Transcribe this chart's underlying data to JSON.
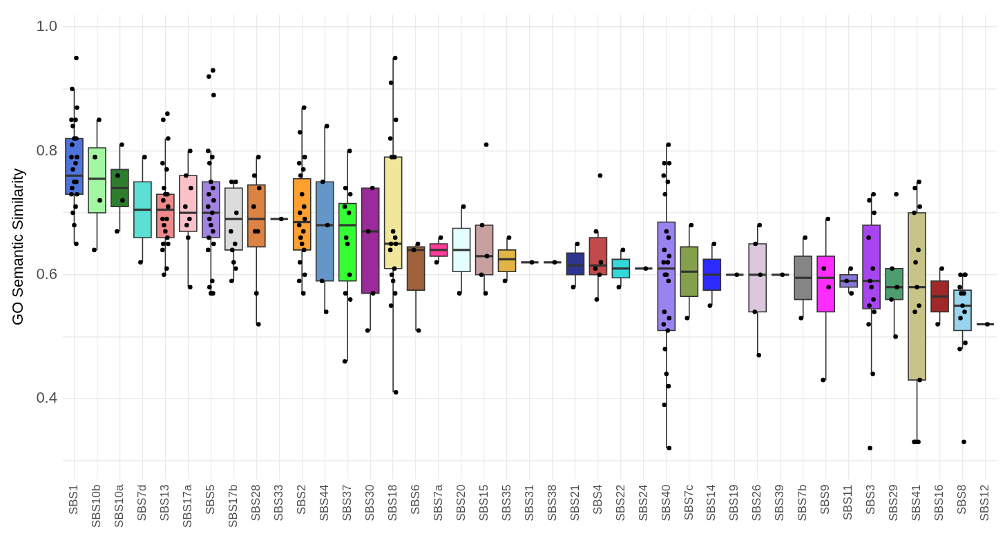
{
  "chart_data": {
    "type": "box",
    "ylabel": "GO Semantic Similarity",
    "categories": [
      "SBS1",
      "SBS10b",
      "SBS10a",
      "SBS7d",
      "SBS13",
      "SBS17a",
      "SBS5",
      "SBS17b",
      "SBS28",
      "SBS33",
      "SBS2",
      "SBS44",
      "SBS37",
      "SBS30",
      "SBS18",
      "SBS6",
      "SBS7a",
      "SBS20",
      "SBS15",
      "SBS35",
      "SBS31",
      "SBS38",
      "SBS21",
      "SBS4",
      "SBS22",
      "SBS24",
      "SBS40",
      "SBS7c",
      "SBS14",
      "SBS19",
      "SBS26",
      "SBS39",
      "SBS7b",
      "SBS9",
      "SBS11",
      "SBS3",
      "SBS29",
      "SBS41",
      "SBS16",
      "SBS8",
      "SBS12"
    ],
    "ylim": [
      0.27,
      1.02
    ],
    "yticks": [
      {
        "value": 0.3,
        "label": null
      },
      0.4,
      {
        "value": 0.5,
        "label": null
      },
      0.6,
      {
        "value": 0.7,
        "label": null
      },
      0.8,
      {
        "value": 0.9,
        "label": null
      },
      {
        "value": 1,
        "label": "1.0"
      }
    ],
    "grid": true,
    "series": [
      {
        "type": "box",
        "colors": [
          "#4f73dd",
          "#a3f7a3",
          "#2e7d2e",
          "#5ce0d5",
          "#ef8a8a",
          "#fcc0c8",
          "#a183e0",
          "#dcdcdc",
          "#dc8242",
          "#333333",
          "#ffa030",
          "#6496c8",
          "#33ff33",
          "#9b2a9b",
          "#f0e69c",
          "#a0623a",
          "#ff3c9b",
          "#e3ffff",
          "#c8a0a0",
          "#e2b445",
          "#333333",
          "#333333",
          "#2e3591",
          "#c24a4a",
          "#33d8d8",
          "#333333",
          "#9883f0",
          "#85a04c",
          "#2b2bff",
          "#333333",
          "#dcc8dc",
          "#333333",
          "#858585",
          "#ff2cff",
          "#8877d8",
          "#a845f0",
          "#4c9e6e",
          "#c8c488",
          "#a02828",
          "#98d4ee",
          "#333333"
        ],
        "boxes": [
          {
            "low": 0.65,
            "q1": 0.73,
            "median": 0.76,
            "q3": 0.82,
            "high": 0.9
          },
          {
            "low": 0.64,
            "q1": 0.7,
            "median": 0.755,
            "q3": 0.805,
            "high": 0.85
          },
          {
            "low": 0.67,
            "q1": 0.71,
            "median": 0.74,
            "q3": 0.77,
            "high": 0.81
          },
          {
            "low": 0.62,
            "q1": 0.66,
            "median": 0.705,
            "q3": 0.75,
            "high": 0.79
          },
          {
            "low": 0.6,
            "q1": 0.66,
            "median": 0.705,
            "q3": 0.73,
            "high": 0.82
          },
          {
            "low": 0.58,
            "q1": 0.67,
            "median": 0.7,
            "q3": 0.76,
            "high": 0.8
          },
          {
            "low": 0.57,
            "q1": 0.66,
            "median": 0.7,
            "q3": 0.75,
            "high": 0.8
          },
          {
            "low": 0.59,
            "q1": 0.64,
            "median": 0.69,
            "q3": 0.74,
            "high": 0.75
          },
          {
            "low": 0.52,
            "q1": 0.645,
            "median": 0.69,
            "q3": 0.745,
            "high": 0.79
          },
          {
            "low": 0.69,
            "q1": 0.69,
            "median": 0.69,
            "q3": 0.69,
            "high": 0.69
          },
          {
            "low": 0.57,
            "q1": 0.64,
            "median": 0.685,
            "q3": 0.755,
            "high": 0.87
          },
          {
            "low": 0.54,
            "q1": 0.59,
            "median": 0.68,
            "q3": 0.75,
            "high": 0.84
          },
          {
            "low": 0.46,
            "q1": 0.59,
            "median": 0.68,
            "q3": 0.715,
            "high": 0.8
          },
          {
            "low": 0.51,
            "q1": 0.57,
            "median": 0.67,
            "q3": 0.74,
            "high": 0.74
          },
          {
            "low": 0.41,
            "q1": 0.61,
            "median": 0.65,
            "q3": 0.79,
            "high": 0.95
          },
          {
            "low": 0.51,
            "q1": 0.575,
            "median": 0.64,
            "q3": 0.645,
            "high": 0.65
          },
          {
            "low": 0.62,
            "q1": 0.63,
            "median": 0.64,
            "q3": 0.65,
            "high": 0.66
          },
          {
            "low": 0.57,
            "q1": 0.605,
            "median": 0.64,
            "q3": 0.675,
            "high": 0.71
          },
          {
            "low": 0.57,
            "q1": 0.6,
            "median": 0.63,
            "q3": 0.68,
            "high": 0.68
          },
          {
            "low": 0.59,
            "q1": 0.605,
            "median": 0.625,
            "q3": 0.64,
            "high": 0.66
          },
          {
            "low": 0.62,
            "q1": 0.62,
            "median": 0.62,
            "q3": 0.62,
            "high": 0.62
          },
          {
            "low": 0.62,
            "q1": 0.62,
            "median": 0.62,
            "q3": 0.62,
            "high": 0.62
          },
          {
            "low": 0.58,
            "q1": 0.6,
            "median": 0.615,
            "q3": 0.635,
            "high": 0.65
          },
          {
            "low": 0.56,
            "q1": 0.6,
            "median": 0.615,
            "q3": 0.66,
            "high": 0.67
          },
          {
            "low": 0.58,
            "q1": 0.595,
            "median": 0.61,
            "q3": 0.625,
            "high": 0.64
          },
          {
            "low": 0.61,
            "q1": 0.61,
            "median": 0.61,
            "q3": 0.61,
            "high": 0.61
          },
          {
            "low": 0.32,
            "q1": 0.51,
            "median": 0.61,
            "q3": 0.685,
            "high": 0.81
          },
          {
            "low": 0.53,
            "q1": 0.565,
            "median": 0.605,
            "q3": 0.645,
            "high": 0.68
          },
          {
            "low": 0.55,
            "q1": 0.575,
            "median": 0.6,
            "q3": 0.625,
            "high": 0.65
          },
          {
            "low": 0.6,
            "q1": 0.6,
            "median": 0.6,
            "q3": 0.6,
            "high": 0.6
          },
          {
            "low": 0.47,
            "q1": 0.54,
            "median": 0.6,
            "q3": 0.65,
            "high": 0.68
          },
          {
            "low": 0.6,
            "q1": 0.6,
            "median": 0.6,
            "q3": 0.6,
            "high": 0.6
          },
          {
            "low": 0.53,
            "q1": 0.56,
            "median": 0.595,
            "q3": 0.63,
            "high": 0.66
          },
          {
            "low": 0.43,
            "q1": 0.54,
            "median": 0.595,
            "q3": 0.63,
            "high": 0.69
          },
          {
            "low": 0.57,
            "q1": 0.58,
            "median": 0.59,
            "q3": 0.6,
            "high": 0.61
          },
          {
            "low": 0.44,
            "q1": 0.545,
            "median": 0.59,
            "q3": 0.68,
            "high": 0.73
          },
          {
            "low": 0.5,
            "q1": 0.56,
            "median": 0.58,
            "q3": 0.61,
            "high": 0.61
          },
          {
            "low": 0.33,
            "q1": 0.43,
            "median": 0.58,
            "q3": 0.7,
            "high": 0.75
          },
          {
            "low": 0.52,
            "q1": 0.54,
            "median": 0.565,
            "q3": 0.59,
            "high": 0.61
          },
          {
            "low": 0.48,
            "q1": 0.51,
            "median": 0.55,
            "q3": 0.575,
            "high": 0.6
          },
          {
            "low": 0.52,
            "q1": 0.52,
            "median": 0.52,
            "q3": 0.52,
            "high": 0.52
          }
        ]
      },
      {
        "type": "scatter",
        "color": "#000000",
        "x": [
          "SBS1",
          "SBS1",
          "SBS1",
          "SBS1",
          "SBS1",
          "SBS1",
          "SBS1",
          "SBS1",
          "SBS1",
          "SBS1",
          "SBS1",
          "SBS1",
          "SBS1",
          "SBS1",
          "SBS1",
          "SBS1",
          "SBS1",
          "SBS1",
          "SBS1",
          "SBS1",
          "SBS1",
          "SBS1",
          "SBS10b",
          "SBS10b",
          "SBS10b",
          "SBS10b",
          "SBS10a",
          "SBS10a",
          "SBS10a",
          "SBS10a",
          "SBS7d",
          "SBS7d",
          "SBS13",
          "SBS13",
          "SBS13",
          "SBS13",
          "SBS13",
          "SBS13",
          "SBS13",
          "SBS13",
          "SBS13",
          "SBS13",
          "SBS13",
          "SBS13",
          "SBS13",
          "SBS13",
          "SBS13",
          "SBS13",
          "SBS13",
          "SBS13",
          "SBS13",
          "SBS13",
          "SBS17a",
          "SBS17a",
          "SBS17a",
          "SBS17a",
          "SBS17a",
          "SBS17a",
          "SBS17a",
          "SBS17a",
          "SBS5",
          "SBS5",
          "SBS5",
          "SBS5",
          "SBS5",
          "SBS5",
          "SBS5",
          "SBS5",
          "SBS5",
          "SBS5",
          "SBS5",
          "SBS5",
          "SBS5",
          "SBS5",
          "SBS5",
          "SBS5",
          "SBS5",
          "SBS5",
          "SBS5",
          "SBS5",
          "SBS5",
          "SBS5",
          "SBS17b",
          "SBS17b",
          "SBS17b",
          "SBS17b",
          "SBS17b",
          "SBS17b",
          "SBS17b",
          "SBS17b",
          "SBS17b",
          "SBS28",
          "SBS28",
          "SBS28",
          "SBS28",
          "SBS28",
          "SBS28",
          "SBS28",
          "SBS28",
          "SBS33",
          "SBS2",
          "SBS2",
          "SBS2",
          "SBS2",
          "SBS2",
          "SBS2",
          "SBS2",
          "SBS2",
          "SBS2",
          "SBS2",
          "SBS2",
          "SBS2",
          "SBS2",
          "SBS2",
          "SBS2",
          "SBS2",
          "SBS2",
          "SBS2",
          "SBS2",
          "SBS44",
          "SBS44",
          "SBS44",
          "SBS44",
          "SBS44",
          "SBS37",
          "SBS37",
          "SBS37",
          "SBS37",
          "SBS37",
          "SBS37",
          "SBS37",
          "SBS37",
          "SBS37",
          "SBS37",
          "SBS37",
          "SBS30",
          "SBS30",
          "SBS30",
          "SBS30",
          "SBS18",
          "SBS18",
          "SBS18",
          "SBS18",
          "SBS18",
          "SBS18",
          "SBS18",
          "SBS18",
          "SBS18",
          "SBS18",
          "SBS18",
          "SBS18",
          "SBS18",
          "SBS18",
          "SBS18",
          "SBS18",
          "SBS18",
          "SBS6",
          "SBS6",
          "SBS6",
          "SBS7a",
          "SBS7a",
          "SBS20",
          "SBS20",
          "SBS15",
          "SBS15",
          "SBS15",
          "SBS15",
          "SBS15",
          "SBS35",
          "SBS35",
          "SBS31",
          "SBS38",
          "SBS21",
          "SBS21",
          "SBS4",
          "SBS4",
          "SBS4",
          "SBS4",
          "SBS4",
          "SBS4",
          "SBS22",
          "SBS22",
          "SBS24",
          "SBS40",
          "SBS40",
          "SBS40",
          "SBS40",
          "SBS40",
          "SBS40",
          "SBS40",
          "SBS40",
          "SBS40",
          "SBS40",
          "SBS40",
          "SBS40",
          "SBS40",
          "SBS40",
          "SBS40",
          "SBS40",
          "SBS40",
          "SBS40",
          "SBS40",
          "SBS40",
          "SBS40",
          "SBS40",
          "SBS40",
          "SBS40",
          "SBS7c",
          "SBS7c",
          "SBS14",
          "SBS14",
          "SBS19",
          "SBS26",
          "SBS26",
          "SBS26",
          "SBS26",
          "SBS26",
          "SBS39",
          "SBS7b",
          "SBS7b",
          "SBS9",
          "SBS9",
          "SBS9",
          "SBS9",
          "SBS11",
          "SBS11",
          "SBS11",
          "SBS3",
          "SBS3",
          "SBS3",
          "SBS3",
          "SBS3",
          "SBS3",
          "SBS3",
          "SBS3",
          "SBS3",
          "SBS3",
          "SBS3",
          "SBS3",
          "SBS3",
          "SBS29",
          "SBS29",
          "SBS29",
          "SBS29",
          "SBS29",
          "SBS41",
          "SBS41",
          "SBS41",
          "SBS41",
          "SBS41",
          "SBS41",
          "SBS41",
          "SBS41",
          "SBS41",
          "SBS41",
          "SBS41",
          "SBS41",
          "SBS41",
          "SBS16",
          "SBS16",
          "SBS8",
          "SBS8",
          "SBS8",
          "SBS8",
          "SBS8",
          "SBS8",
          "SBS8",
          "SBS8",
          "SBS8",
          "SBS8",
          "SBS8",
          "SBS8",
          "SBS12"
        ],
        "values": [
          0.95,
          0.9,
          0.87,
          0.85,
          0.85,
          0.84,
          0.82,
          0.82,
          0.81,
          0.79,
          0.79,
          0.78,
          0.77,
          0.75,
          0.75,
          0.74,
          0.73,
          0.73,
          0.71,
          0.7,
          0.68,
          0.65,
          0.85,
          0.79,
          0.72,
          0.64,
          0.81,
          0.76,
          0.72,
          0.67,
          0.79,
          0.62,
          0.86,
          0.85,
          0.82,
          0.78,
          0.77,
          0.74,
          0.73,
          0.73,
          0.72,
          0.71,
          0.69,
          0.69,
          0.68,
          0.67,
          0.66,
          0.65,
          0.65,
          0.64,
          0.61,
          0.6,
          0.8,
          0.76,
          0.74,
          0.71,
          0.69,
          0.68,
          0.66,
          0.58,
          0.93,
          0.92,
          0.89,
          0.8,
          0.79,
          0.78,
          0.75,
          0.74,
          0.73,
          0.72,
          0.71,
          0.7,
          0.69,
          0.68,
          0.67,
          0.66,
          0.65,
          0.64,
          0.59,
          0.58,
          0.57,
          0.57,
          0.75,
          0.75,
          0.7,
          0.67,
          0.65,
          0.64,
          0.62,
          0.61,
          0.59,
          0.79,
          0.76,
          0.74,
          0.71,
          0.67,
          0.67,
          0.57,
          0.52,
          0.69,
          0.87,
          0.83,
          0.79,
          0.78,
          0.77,
          0.76,
          0.73,
          0.71,
          0.7,
          0.69,
          0.68,
          0.67,
          0.66,
          0.65,
          0.64,
          0.62,
          0.6,
          0.59,
          0.57,
          0.84,
          0.75,
          0.68,
          0.59,
          0.54,
          0.8,
          0.74,
          0.73,
          0.71,
          0.7,
          0.66,
          0.65,
          0.6,
          0.57,
          0.56,
          0.46,
          0.74,
          0.67,
          0.57,
          0.51,
          0.95,
          0.91,
          0.85,
          0.82,
          0.79,
          0.79,
          0.67,
          0.66,
          0.65,
          0.65,
          0.64,
          0.61,
          0.6,
          0.59,
          0.57,
          0.55,
          0.41,
          0.65,
          0.64,
          0.51,
          0.66,
          0.62,
          0.71,
          0.57,
          0.81,
          0.68,
          0.63,
          0.6,
          0.57,
          0.66,
          0.59,
          0.62,
          0.62,
          0.65,
          0.58,
          0.76,
          0.67,
          0.62,
          0.61,
          0.6,
          0.56,
          0.64,
          0.58,
          0.61,
          0.81,
          0.78,
          0.78,
          0.76,
          0.75,
          0.73,
          0.67,
          0.66,
          0.64,
          0.63,
          0.62,
          0.62,
          0.6,
          0.6,
          0.59,
          0.54,
          0.53,
          0.52,
          0.51,
          0.48,
          0.44,
          0.42,
          0.39,
          0.32,
          0.68,
          0.53,
          0.65,
          0.55,
          0.6,
          0.68,
          0.65,
          0.6,
          0.54,
          0.47,
          0.6,
          0.66,
          0.53,
          0.69,
          0.61,
          0.58,
          0.43,
          0.61,
          0.59,
          0.57,
          0.73,
          0.72,
          0.7,
          0.66,
          0.61,
          0.59,
          0.58,
          0.56,
          0.55,
          0.54,
          0.52,
          0.44,
          0.32,
          0.73,
          0.61,
          0.58,
          0.56,
          0.5,
          0.75,
          0.74,
          0.71,
          0.7,
          0.64,
          0.62,
          0.58,
          0.55,
          0.54,
          0.43,
          0.33,
          0.33,
          0.33,
          0.61,
          0.52,
          0.6,
          0.6,
          0.6,
          0.58,
          0.57,
          0.57,
          0.55,
          0.54,
          0.53,
          0.49,
          0.48,
          0.33,
          0.52
        ]
      }
    ]
  }
}
